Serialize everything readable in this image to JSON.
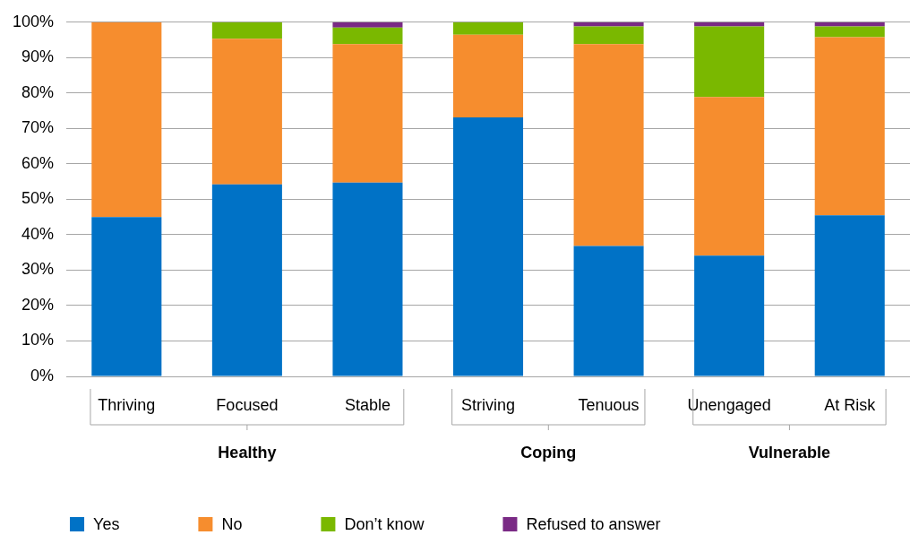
{
  "chart_data": {
    "type": "bar",
    "stacked": true,
    "categories": [
      "Thriving",
      "Focused",
      "Stable",
      "Striving",
      "Tenuous",
      "Unengaged",
      "At Risk"
    ],
    "series": [
      {
        "name": "Yes",
        "color": "#0072c6",
        "values": [
          45,
          54.2,
          54.7,
          73.1,
          36.8,
          34.1,
          45.5
        ]
      },
      {
        "name": "No",
        "color": "#f68d2e",
        "values": [
          55,
          41.1,
          39.1,
          23.4,
          57,
          44.8,
          50.3
        ]
      },
      {
        "name": "Don’t know",
        "color": "#7ab800",
        "values": [
          0,
          4.7,
          4.7,
          3.5,
          5,
          19.9,
          3
        ]
      },
      {
        "name": "Refused to answer",
        "color": "#7a2a85",
        "values": [
          0,
          0,
          1.5,
          0,
          1.2,
          1.2,
          1.2
        ]
      }
    ],
    "ylim": [
      0,
      100
    ],
    "yticks": [
      {
        "value": 0,
        "label": "0%"
      },
      {
        "value": 10,
        "label": "10%"
      },
      {
        "value": 20,
        "label": "20%"
      },
      {
        "value": 30,
        "label": "30%"
      },
      {
        "value": 40,
        "label": "40%"
      },
      {
        "value": 50,
        "label": "50%"
      },
      {
        "value": 60,
        "label": "60%"
      },
      {
        "value": 70,
        "label": "70%"
      },
      {
        "value": 80,
        "label": "80%"
      },
      {
        "value": 90,
        "label": "90%"
      },
      {
        "value": 100,
        "label": "100%"
      }
    ],
    "grid": "y",
    "legend": "bottom left",
    "annotations": [
      "Healthy",
      "Coping",
      "Vulnerable"
    ]
  }
}
